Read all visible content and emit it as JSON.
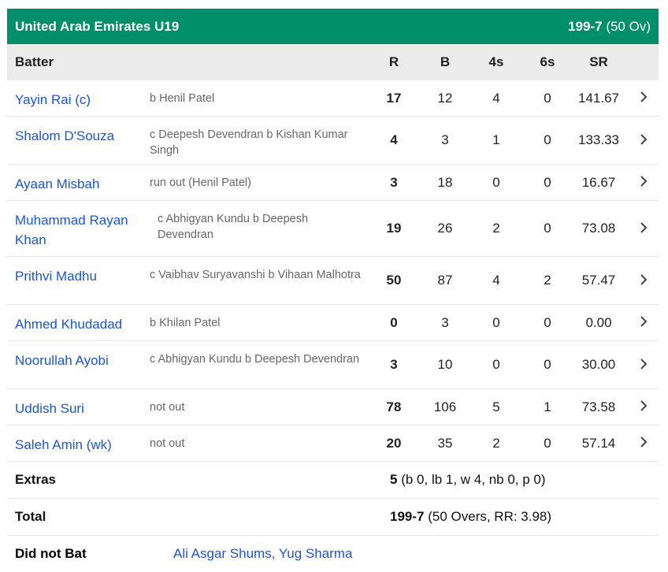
{
  "header": {
    "team": "United Arab Emirates U19",
    "score": "199-7",
    "overs": "(50 Ov)",
    "bg_color": "#008f6b"
  },
  "columns": [
    "Batter",
    "",
    "R",
    "B",
    "4s",
    "6s",
    "SR"
  ],
  "batters": [
    {
      "name": "Yayin Rai (c)",
      "dismissal": "b Henil Patel",
      "r": "17",
      "b": "12",
      "fours": "4",
      "sixes": "0",
      "sr": "141.67"
    },
    {
      "name": "Shalom D'Souza",
      "dismissal": "c Deepesh Devendran b Kishan Kumar Singh",
      "r": "4",
      "b": "3",
      "fours": "1",
      "sixes": "0",
      "sr": "133.33"
    },
    {
      "name": "Ayaan Misbah",
      "dismissal": "run out (Henil Patel)",
      "r": "3",
      "b": "18",
      "fours": "0",
      "sixes": "0",
      "sr": "16.67"
    },
    {
      "name": "Muhammad Rayan Khan",
      "dismissal": "c Abhigyan Kundu b Deepesh Devendran",
      "r": "19",
      "b": "26",
      "fours": "2",
      "sixes": "0",
      "sr": "73.08"
    },
    {
      "name": "Prithvi Madhu",
      "dismissal": "c Vaibhav Suryavanshi b Vihaan Malhotra",
      "r": "50",
      "b": "87",
      "fours": "4",
      "sixes": "2",
      "sr": "57.47"
    },
    {
      "name": "Ahmed Khudadad",
      "dismissal": "b Khilan Patel",
      "r": "0",
      "b": "3",
      "fours": "0",
      "sixes": "0",
      "sr": "0.00"
    },
    {
      "name": "Noorullah Ayobi",
      "dismissal": "c Abhigyan Kundu b Deepesh Devendran",
      "r": "3",
      "b": "10",
      "fours": "0",
      "sixes": "0",
      "sr": "30.00"
    },
    {
      "name": "Uddish Suri",
      "dismissal": "not out",
      "r": "78",
      "b": "106",
      "fours": "5",
      "sixes": "1",
      "sr": "73.58"
    },
    {
      "name": "Saleh Amin (wk)",
      "dismissal": "not out",
      "r": "20",
      "b": "35",
      "fours": "2",
      "sixes": "0",
      "sr": "57.14"
    }
  ],
  "extras": {
    "label": "Extras",
    "total": "5",
    "detail": "(b 0, lb 1, w 4, nb 0, p 0)"
  },
  "total": {
    "label": "Total",
    "score": "199-7",
    "detail": "(50 Overs, RR: 3.98)"
  },
  "did_not_bat": {
    "label": "Did not Bat",
    "players": "Ali Asgar Shums, Yug Sharma"
  }
}
